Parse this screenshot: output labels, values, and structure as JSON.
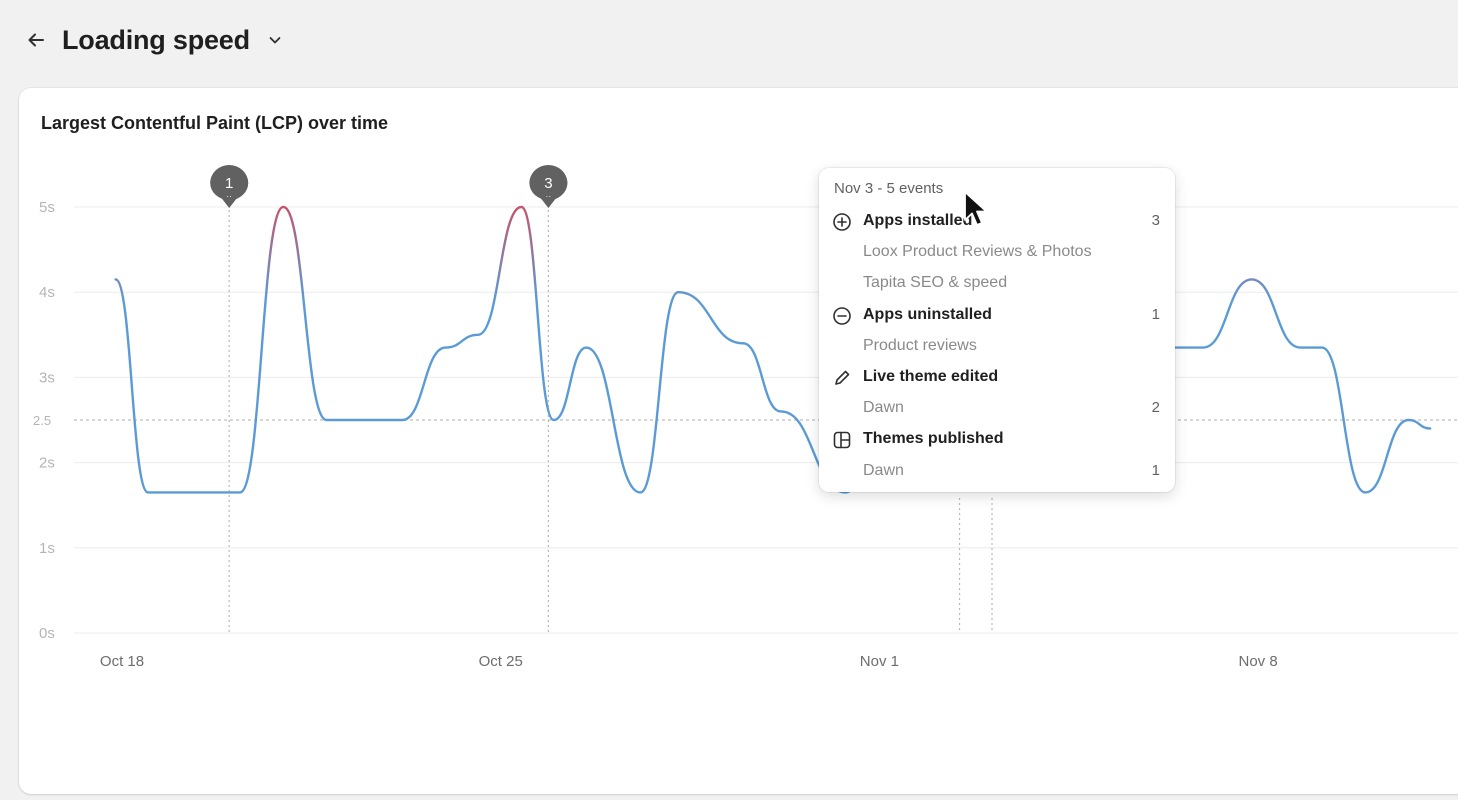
{
  "page": {
    "title": "Loading speed",
    "back_icon": "arrow-left-icon",
    "dropdown_icon": "chevron-down-icon"
  },
  "card": {
    "title": "Largest Contentful Paint (LCP) over time"
  },
  "colors": {
    "line": "#5b9bd5",
    "line_peak": "#c5556f",
    "grid": "#ececec",
    "threshold": "#bdbdbd",
    "marker": "#616161"
  },
  "chart_data": {
    "type": "line",
    "title": "Largest Contentful Paint (LCP) over time",
    "xlabel": "",
    "ylabel": "",
    "yticks": [
      "0s",
      "1s",
      "2s",
      "2.5",
      "3s",
      "4s",
      "5s"
    ],
    "ylim": [
      0,
      5
    ],
    "xtick_labels": [
      {
        "label": "Oct 18",
        "day": 0
      },
      {
        "label": "Oct 25",
        "day": 7
      },
      {
        "label": "Nov 1",
        "day": 14
      },
      {
        "label": "Nov 8",
        "day": 21
      }
    ],
    "threshold": 2.5,
    "grid": true,
    "series": [
      {
        "values": [
          [
            -0.1,
            4.15
          ],
          [
            0.5,
            1.65
          ],
          [
            1.0,
            1.65
          ],
          [
            2.2,
            1.65
          ],
          [
            3.0,
            5.0
          ],
          [
            3.8,
            2.5
          ],
          [
            4.1,
            2.5
          ],
          [
            5.2,
            2.5
          ],
          [
            6.0,
            3.35
          ],
          [
            6.6,
            3.5
          ],
          [
            7.4,
            5.0
          ],
          [
            8.0,
            2.5
          ],
          [
            8.6,
            3.35
          ],
          [
            9.6,
            1.65
          ],
          [
            10.3,
            4.0
          ],
          [
            11.5,
            3.4
          ],
          [
            12.2,
            2.6
          ],
          [
            13.4,
            1.65
          ],
          [
            14.2,
            3.0
          ],
          [
            15.2,
            3.5
          ],
          [
            16.0,
            3.5
          ],
          [
            17.0,
            3.0
          ],
          [
            18.0,
            2.8
          ],
          [
            19.2,
            3.35
          ],
          [
            20.0,
            3.35
          ],
          [
            20.9,
            4.15
          ],
          [
            21.8,
            3.35
          ],
          [
            22.2,
            3.35
          ],
          [
            23.0,
            1.65
          ],
          [
            23.8,
            2.5
          ],
          [
            24.2,
            2.4
          ]
        ]
      }
    ],
    "event_markers": [
      {
        "label": "1",
        "day": 2.0
      },
      {
        "label": "3",
        "day": 7.9
      },
      {
        "label": "",
        "day": 15.5
      },
      {
        "label": "",
        "day": 16.1
      }
    ]
  },
  "tooltip": {
    "header": "Nov 3 - 5 events",
    "sections": [
      {
        "icon": "plus-circle-icon",
        "label": "Apps installed",
        "count": "3",
        "items": [
          {
            "name": "Loox Product Reviews & Photos",
            "count": ""
          },
          {
            "name": "Tapita SEO & speed",
            "count": ""
          }
        ]
      },
      {
        "icon": "minus-circle-icon",
        "label": "Apps uninstalled",
        "count": "1",
        "items": [
          {
            "name": "Product reviews",
            "count": ""
          }
        ]
      },
      {
        "icon": "pencil-icon",
        "label": "Live theme edited",
        "count": "",
        "items": [
          {
            "name": "Dawn",
            "count": "2"
          }
        ]
      },
      {
        "icon": "layout-icon",
        "label": "Themes published",
        "count": "",
        "items": [
          {
            "name": "Dawn",
            "count": "1"
          }
        ]
      }
    ]
  }
}
